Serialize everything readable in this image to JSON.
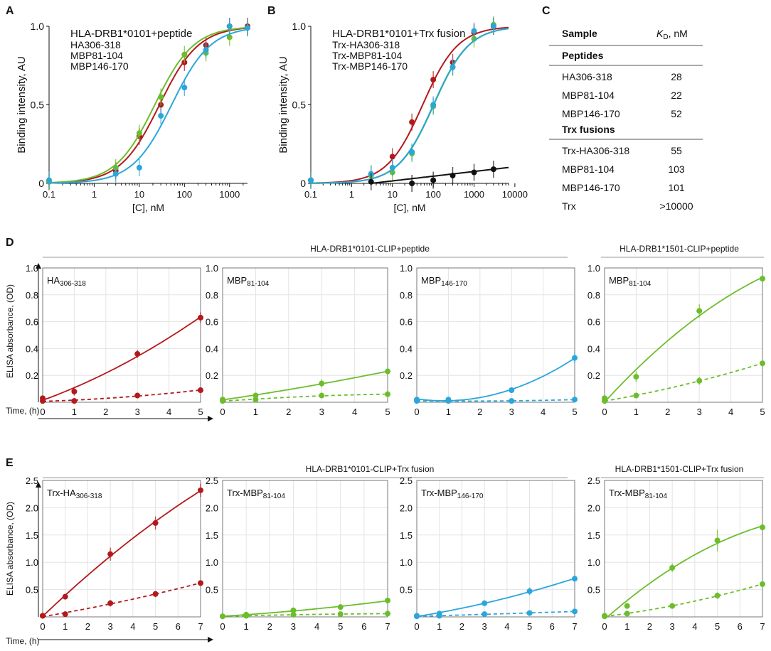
{
  "colors": {
    "red": "#b3191c",
    "green": "#6cbd2c",
    "blue": "#2aa6dc",
    "black": "#111111",
    "grid": "#e3e3e3"
  },
  "panelA": {
    "letter": "A",
    "chart_data": {
      "type": "scatter",
      "xscale": "log",
      "title": "HLA-DRB1*0101+peptide",
      "xlabel": "[C], nM",
      "ylabel": "Binding intensity, AU",
      "xlim": [
        0.1,
        2500
      ],
      "ylim": [
        0,
        1.0
      ],
      "xticks": [
        "0.1",
        "1",
        "10",
        "100",
        "1000"
      ],
      "yticks": [
        "0",
        "0.5",
        "1.0"
      ],
      "series": [
        {
          "name": "HA306-318",
          "color": "red",
          "kd": 28,
          "x": [
            0.1,
            3,
            10,
            30,
            100,
            300,
            1000,
            2500
          ],
          "y": [
            0.01,
            0.08,
            0.3,
            0.5,
            0.77,
            0.88,
            1.0,
            1.0
          ]
        },
        {
          "name": "MBP81-104",
          "color": "green",
          "kd": 22,
          "x": [
            0.1,
            3,
            10,
            30,
            100,
            300,
            1000,
            2500
          ],
          "y": [
            0.01,
            0.1,
            0.32,
            0.55,
            0.82,
            0.83,
            0.93,
            0.99
          ]
        },
        {
          "name": "MBP146-170",
          "color": "blue",
          "kd": 52,
          "x": [
            0.1,
            3,
            10,
            30,
            100,
            300,
            1000,
            2500
          ],
          "y": [
            0.02,
            0.06,
            0.1,
            0.43,
            0.61,
            0.85,
            1.0,
            0.99
          ]
        }
      ]
    }
  },
  "panelB": {
    "letter": "B",
    "chart_data": {
      "type": "scatter",
      "xscale": "log",
      "title": "HLA-DRB1*0101+Trx fusion",
      "xlabel": "[C], nM",
      "ylabel": "Binding intensity, AU",
      "xlim": [
        0.1,
        7000
      ],
      "ylim": [
        0,
        1.0
      ],
      "xticks": [
        "0.1",
        "1",
        "10",
        "100",
        "1000",
        "10000"
      ],
      "yticks": [
        "0",
        "0.5",
        "1.0"
      ],
      "series": [
        {
          "name": "Trx-HA306-318",
          "color": "red",
          "kd": 55,
          "x": [
            0.1,
            3,
            10,
            30,
            100,
            300,
            1000,
            3000
          ],
          "y": [
            0.02,
            0.06,
            0.17,
            0.39,
            0.66,
            0.77,
            0.96,
            1.0
          ]
        },
        {
          "name": "Trx-MBP81-104",
          "color": "green",
          "kd": 103,
          "x": [
            0.1,
            3,
            10,
            30,
            100,
            300,
            1000,
            3000
          ],
          "y": [
            0.02,
            0.05,
            0.07,
            0.19,
            0.49,
            0.74,
            0.92,
            1.01
          ]
        },
        {
          "name": "Trx-MBP146-170",
          "color": "blue",
          "kd": 101,
          "x": [
            0.1,
            3,
            10,
            30,
            100,
            300,
            1000,
            3000
          ],
          "y": [
            0.02,
            0.06,
            0.1,
            0.2,
            0.5,
            0.74,
            0.97,
            1.0
          ]
        },
        {
          "name": "Trx",
          "color": "black",
          "hide_legend": true,
          "x": [
            3,
            30,
            100,
            300,
            1000,
            3000
          ],
          "y": [
            0.01,
            0.0,
            0.02,
            0.05,
            0.07,
            0.09
          ]
        }
      ]
    }
  },
  "panelC": {
    "letter": "C",
    "header_sample": "Sample",
    "header_kd_k": "K",
    "header_kd_sub": "D",
    "header_kd_unit": ", nM",
    "groups": [
      {
        "title": "Peptides",
        "rows": [
          {
            "sample": "HA306-318",
            "kd": "28"
          },
          {
            "sample": "MBP81-104",
            "kd": "22"
          },
          {
            "sample": "MBP146-170",
            "kd": "52"
          }
        ]
      },
      {
        "title": "Trx fusions",
        "rows": [
          {
            "sample": "Trx-HA306-318",
            "kd": "55"
          },
          {
            "sample": "MBP81-104",
            "kd": "103"
          },
          {
            "sample": "MBP146-170",
            "kd": "101"
          },
          {
            "sample": "Trx",
            "kd": ">10000"
          }
        ]
      }
    ]
  },
  "panelD": {
    "letter": "D",
    "group_titles": [
      "HLA-DRB1*0101-CLIP+peptide",
      "HLA-DRB1*1501-CLIP+peptide"
    ],
    "ylabel": "ELISA absorbance, (OD)",
    "xlabel": "Time, (h)",
    "chart_data": [
      {
        "type": "line",
        "label_main": "HA",
        "label_sub": "306-318",
        "color": "red",
        "xlim": [
          0,
          5
        ],
        "ylim": [
          0,
          1.0
        ],
        "xticks": [
          0,
          1,
          2,
          3,
          4,
          5
        ],
        "yticks": [
          "0.2",
          "0.4",
          "0.6",
          "0.8",
          "1.0"
        ],
        "ytick_values": [
          0.2,
          0.4,
          0.6,
          0.8,
          1.0
        ],
        "series": [
          {
            "name": "solid",
            "x": [
              0,
              1,
              3,
              5
            ],
            "y": [
              0.03,
              0.08,
              0.36,
              0.63
            ],
            "err": [
              0.02,
              0.03,
              0.03,
              0.04
            ]
          },
          {
            "name": "dashed",
            "x": [
              0,
              1,
              3,
              5
            ],
            "y": [
              0.01,
              0.01,
              0.05,
              0.09
            ],
            "err": [
              0.01,
              0.01,
              0.02,
              0.02
            ]
          }
        ]
      },
      {
        "type": "line",
        "label_main": "MBP",
        "label_sub": "81-104",
        "color": "green",
        "xlim": [
          0,
          5
        ],
        "ylim": [
          0,
          1.0
        ],
        "xticks": [
          0,
          1,
          2,
          3,
          4,
          5
        ],
        "yticks": [
          "0.2",
          "0.4",
          "0.6",
          "0.8",
          "1.0"
        ],
        "ytick_values": [
          0.2,
          0.4,
          0.6,
          0.8,
          1.0
        ],
        "series": [
          {
            "name": "solid",
            "x": [
              0,
              1,
              3,
              5
            ],
            "y": [
              0.02,
              0.05,
              0.14,
              0.23
            ],
            "err": [
              0.01,
              0.02,
              0.03,
              0.02
            ]
          },
          {
            "name": "dashed",
            "x": [
              0,
              1,
              3,
              5
            ],
            "y": [
              0.01,
              0.02,
              0.05,
              0.06
            ],
            "err": [
              0.01,
              0.01,
              0.01,
              0.01
            ]
          }
        ]
      },
      {
        "type": "line",
        "label_main": "MBP",
        "label_sub": "146-170",
        "color": "blue",
        "xlim": [
          0,
          5
        ],
        "ylim": [
          0,
          1.0
        ],
        "xticks": [
          0,
          1,
          2,
          3,
          4,
          5
        ],
        "yticks": [
          "0.2",
          "0.4",
          "0.6",
          "0.8",
          "1.0"
        ],
        "ytick_values": [
          0.2,
          0.4,
          0.6,
          0.8,
          1.0
        ],
        "series": [
          {
            "name": "solid",
            "x": [
              0,
              1,
              3,
              5
            ],
            "y": [
              0.02,
              0.02,
              0.09,
              0.33
            ],
            "err": [
              0.01,
              0.01,
              0.02,
              0.04
            ]
          },
          {
            "name": "dashed",
            "x": [
              0,
              1,
              3,
              5
            ],
            "y": [
              0.01,
              0.01,
              0.01,
              0.02
            ],
            "err": [
              0.01,
              0.01,
              0.01,
              0.01
            ]
          }
        ]
      },
      {
        "type": "line",
        "label_main": "MBP",
        "label_sub": "81-104",
        "color": "green",
        "xlim": [
          0,
          5
        ],
        "ylim": [
          0,
          1.0
        ],
        "xticks": [
          0,
          1,
          2,
          3,
          4,
          5
        ],
        "yticks": [
          "0.2",
          "0.4",
          "0.6",
          "0.8",
          "1.0"
        ],
        "ytick_values": [
          0.2,
          0.4,
          0.6,
          0.8,
          1.0
        ],
        "series": [
          {
            "name": "solid",
            "x": [
              0,
              1,
              3,
              5
            ],
            "y": [
              0.03,
              0.19,
              0.68,
              0.92
            ],
            "err": [
              0.02,
              0.04,
              0.05,
              0.03
            ]
          },
          {
            "name": "dashed",
            "x": [
              0,
              1,
              3,
              5
            ],
            "y": [
              0.01,
              0.05,
              0.16,
              0.29
            ],
            "err": [
              0.01,
              0.02,
              0.03,
              0.02
            ]
          }
        ]
      }
    ]
  },
  "panelE": {
    "letter": "E",
    "group_titles": [
      "HLA-DRB1*0101-CLIP+Trx fusion",
      "HLA-DRB1*1501-CLIP+Trx fusion"
    ],
    "ylabel": "ELISA absorbance, (OD)",
    "xlabel": "Time, (h)",
    "chart_data": [
      {
        "type": "line",
        "label_main": "Trx-HA",
        "label_sub": "306-318",
        "color": "red",
        "xlim": [
          0,
          7
        ],
        "ylim": [
          0,
          2.5
        ],
        "xticks": [
          0,
          1,
          2,
          3,
          4,
          5,
          6,
          7
        ],
        "yticks": [
          "0.5",
          "1.0",
          "1.5",
          "2.0",
          "2.5"
        ],
        "ytick_values": [
          0.5,
          1.0,
          1.5,
          2.0,
          2.5
        ],
        "series": [
          {
            "name": "solid",
            "x": [
              0,
              1,
              3,
              5,
              7
            ],
            "y": [
              0.02,
              0.37,
              1.15,
              1.72,
              2.32
            ],
            "err": [
              0.03,
              0.05,
              0.12,
              0.12,
              0.12
            ]
          },
          {
            "name": "dashed",
            "x": [
              0,
              1,
              3,
              5,
              7
            ],
            "y": [
              0.02,
              0.05,
              0.25,
              0.42,
              0.62
            ],
            "err": [
              0.02,
              0.03,
              0.06,
              0.06,
              0.05
            ]
          }
        ]
      },
      {
        "type": "line",
        "label_main": "Trx-MBP",
        "label_sub": "81-104",
        "color": "green",
        "xlim": [
          0,
          7
        ],
        "ylim": [
          0,
          2.5
        ],
        "xticks": [
          0,
          1,
          2,
          3,
          4,
          5,
          6,
          7
        ],
        "yticks": [
          "0.5",
          "1.0",
          "1.5",
          "2.0",
          "2.5"
        ],
        "ytick_values": [
          0.5,
          1.0,
          1.5,
          2.0,
          2.5
        ],
        "series": [
          {
            "name": "solid",
            "x": [
              0,
              1,
              3,
              5,
              7
            ],
            "y": [
              0.01,
              0.04,
              0.12,
              0.18,
              0.3
            ],
            "err": [
              0.02,
              0.02,
              0.04,
              0.04,
              0.05
            ]
          },
          {
            "name": "dashed",
            "x": [
              0,
              1,
              3,
              5,
              7
            ],
            "y": [
              0.01,
              0.02,
              0.04,
              0.05,
              0.06
            ],
            "err": [
              0.01,
              0.01,
              0.02,
              0.02,
              0.02
            ]
          }
        ]
      },
      {
        "type": "line",
        "label_main": "Trx-MBP",
        "label_sub": "146-170",
        "color": "blue",
        "xlim": [
          0,
          7
        ],
        "ylim": [
          0,
          2.5
        ],
        "xticks": [
          0,
          1,
          2,
          3,
          4,
          5,
          6,
          7
        ],
        "yticks": [
          "0.5",
          "1.0",
          "1.5",
          "2.0",
          "2.5"
        ],
        "ytick_values": [
          0.5,
          1.0,
          1.5,
          2.0,
          2.5
        ],
        "series": [
          {
            "name": "solid",
            "x": [
              0,
              1,
              3,
              5,
              7
            ],
            "y": [
              0.02,
              0.06,
              0.25,
              0.47,
              0.7
            ],
            "err": [
              0.02,
              0.03,
              0.05,
              0.07,
              0.05
            ]
          },
          {
            "name": "dashed",
            "x": [
              0,
              1,
              3,
              5,
              7
            ],
            "y": [
              0.01,
              0.02,
              0.05,
              0.07,
              0.1
            ],
            "err": [
              0.01,
              0.01,
              0.02,
              0.02,
              0.02
            ]
          }
        ]
      },
      {
        "type": "line",
        "label_main": "Trx-MBP",
        "label_sub": "81-104",
        "color": "green",
        "xlim": [
          0,
          7
        ],
        "ylim": [
          0,
          2.5
        ],
        "xticks": [
          0,
          1,
          2,
          3,
          4,
          5,
          6,
          7
        ],
        "yticks": [
          "0.5",
          "1.0",
          "1.5",
          "2.0",
          "2.5"
        ],
        "ytick_values": [
          0.5,
          1.0,
          1.5,
          2.0,
          2.5
        ],
        "series": [
          {
            "name": "solid",
            "x": [
              0,
              1,
              3,
              5,
              7
            ],
            "y": [
              0.02,
              0.2,
              0.9,
              1.4,
              1.64
            ],
            "err": [
              0.02,
              0.05,
              0.08,
              0.2,
              0.05
            ]
          },
          {
            "name": "dashed",
            "x": [
              0,
              1,
              3,
              5,
              7
            ],
            "y": [
              0.01,
              0.06,
              0.2,
              0.39,
              0.6
            ],
            "err": [
              0.01,
              0.02,
              0.04,
              0.06,
              0.04
            ]
          }
        ]
      }
    ]
  }
}
